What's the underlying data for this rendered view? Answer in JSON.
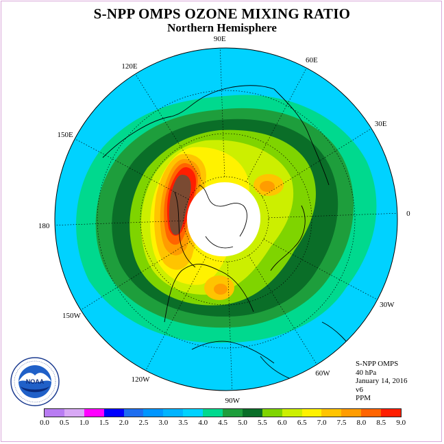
{
  "title": "S-NPP OMPS OZONE MIXING RATIO",
  "subtitle": "Northern Hemisphere",
  "longitude_labels": [
    "90E",
    "60E",
    "30E",
    "0",
    "30W",
    "60W",
    "90W",
    "120W",
    "150W",
    "180",
    "150E",
    "120E"
  ],
  "info_lines": [
    "S-NPP OMPS",
    "40 hPa",
    "January 14, 2016",
    "v6",
    "PPM"
  ],
  "logo": {
    "text": "NOAA",
    "ring_text": "NATIONAL OCEANIC AND ATMOSPHERIC ADMINISTRATION · U.S. DEPARTMENT OF COMMERCE",
    "icon": "noaa-logo"
  },
  "colorbar": {
    "ticks": [
      "0.0",
      "0.5",
      "1.0",
      "1.5",
      "2.0",
      "2.5",
      "3.0",
      "3.5",
      "4.0",
      "4.5",
      "5.0",
      "5.5",
      "6.0",
      "6.5",
      "7.0",
      "7.5",
      "8.0",
      "8.5",
      "9.0"
    ],
    "colors": [
      "#b87cf2",
      "#d8a8f5",
      "#ff00ff",
      "#0000ff",
      "#1e6ef0",
      "#0096ff",
      "#00b4ff",
      "#00d2ff",
      "#00d98e",
      "#1e9e3c",
      "#0a6e28",
      "#7fd400",
      "#ccef00",
      "#fff200",
      "#ffc400",
      "#ff9c00",
      "#ff6400",
      "#ff1e00",
      "#7a4a32"
    ]
  },
  "colors": {
    "polar_night": "#ffffff",
    "outer_band": "#00d2ff",
    "border": "#000000"
  }
}
